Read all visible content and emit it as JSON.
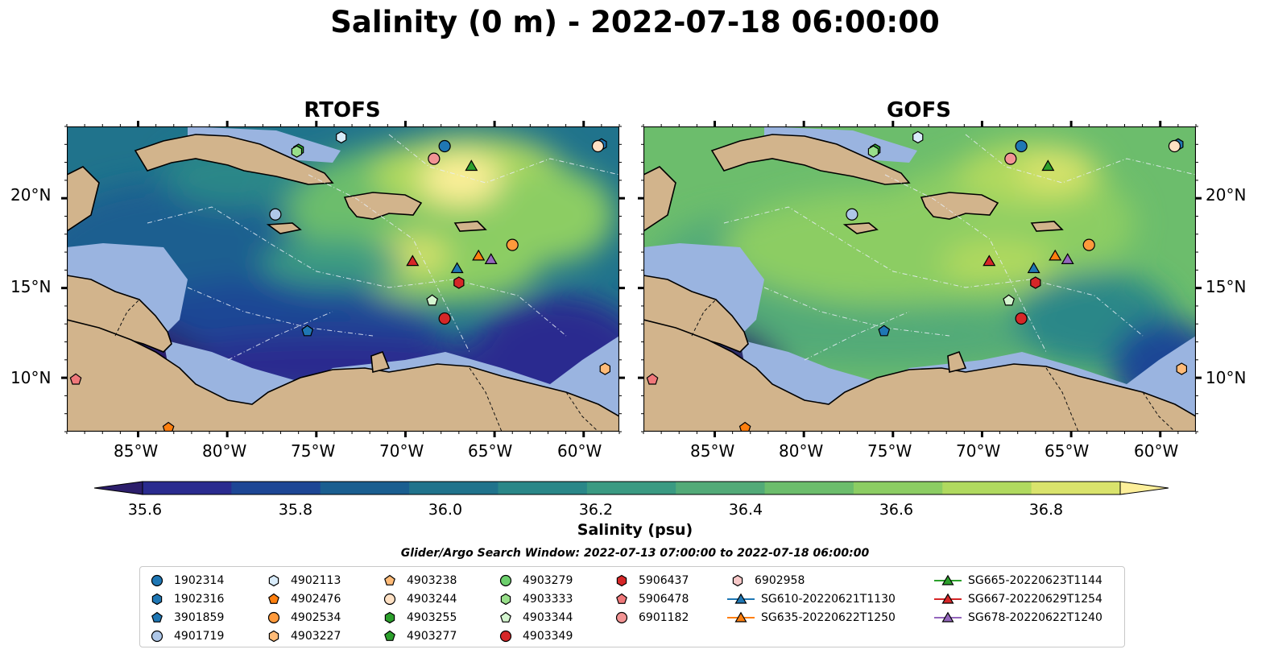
{
  "title": "Salinity (0 m) - 2022-07-18 06:00:00",
  "panels": [
    {
      "id": "rtofs",
      "title": "RTOFS"
    },
    {
      "id": "gofs",
      "title": "GOFS"
    }
  ],
  "axes": {
    "lon_ticks": [
      "85°W",
      "80°W",
      "75°W",
      "70°W",
      "65°W",
      "60°W"
    ],
    "lat_ticks": [
      "20°N",
      "15°N",
      "10°N"
    ]
  },
  "colorbar": {
    "label": "Salinity (psu)",
    "ticks": [
      "35.6",
      "35.8",
      "36.0",
      "36.2",
      "36.4",
      "36.6",
      "36.8"
    ],
    "range": [
      35.5,
      36.9
    ],
    "colors": [
      "#2c1e6b",
      "#2a2b8f",
      "#1d4695",
      "#1a5e90",
      "#20738c",
      "#2a8788",
      "#3a9a82",
      "#52aa78",
      "#6cbd6c",
      "#8ccd63",
      "#b0d95f",
      "#d9e36c",
      "#fdef9a"
    ]
  },
  "search_window": "Glider/Argo Search Window: 2022-07-13 07:00:00 to 2022-07-18 06:00:00",
  "land_color": "#d2b48c",
  "shelf_color": "#9ab4e0",
  "legend": [
    {
      "label": "1902314",
      "marker": "circle",
      "color": "#1f77b4"
    },
    {
      "label": "1902316",
      "marker": "hexagon",
      "color": "#1f77b4"
    },
    {
      "label": "3901859",
      "marker": "pentagon",
      "color": "#1f77b4"
    },
    {
      "label": "4901719",
      "marker": "circle",
      "color": "#aec7e8"
    },
    {
      "label": "4902113",
      "marker": "hexagon",
      "color": "#d9ecfb"
    },
    {
      "label": "4902476",
      "marker": "pentagon",
      "color": "#ff7f0e"
    },
    {
      "label": "4902534",
      "marker": "circle",
      "color": "#ff9a3c"
    },
    {
      "label": "4903227",
      "marker": "hexagon",
      "color": "#ffbb78"
    },
    {
      "label": "4903238",
      "marker": "pentagon",
      "color": "#ffbb78"
    },
    {
      "label": "4903244",
      "marker": "circle",
      "color": "#ffe1c4"
    },
    {
      "label": "4903255",
      "marker": "hexagon",
      "color": "#2ca02c"
    },
    {
      "label": "4903277",
      "marker": "pentagon",
      "color": "#2ca02c"
    },
    {
      "label": "4903279",
      "marker": "circle",
      "color": "#6ccf6c"
    },
    {
      "label": "4903333",
      "marker": "hexagon",
      "color": "#98df8a"
    },
    {
      "label": "4903344",
      "marker": "pentagon",
      "color": "#d4f5cf"
    },
    {
      "label": "4903349",
      "marker": "circle",
      "color": "#d62728"
    },
    {
      "label": "5906437",
      "marker": "hexagon",
      "color": "#d62728"
    },
    {
      "label": "5906478",
      "marker": "pentagon",
      "color": "#f0787a"
    },
    {
      "label": "6901182",
      "marker": "circle",
      "color": "#f29494"
    },
    {
      "label": "6902958",
      "marker": "hexagon",
      "color": "#f7c8c8"
    },
    {
      "label": "SG610-20220621T1130",
      "marker": "triangle",
      "color": "#1f77b4"
    },
    {
      "label": "SG635-20220622T1250",
      "marker": "triangle",
      "color": "#ff7f0e"
    },
    {
      "label": "SG665-20220623T1144",
      "marker": "triangle",
      "color": "#2ca02c"
    },
    {
      "label": "SG667-20220629T1254",
      "marker": "triangle",
      "color": "#d62728"
    },
    {
      "label": "SG678-20220622T1240",
      "marker": "triangle",
      "color": "#9467bd"
    }
  ],
  "observations": [
    {
      "id": "1902314",
      "lon": -67.8,
      "lat": 22.9,
      "marker": "circle",
      "color": "#1f77b4"
    },
    {
      "id": "1902316",
      "lon": -59.0,
      "lat": 23.0,
      "marker": "hexagon",
      "color": "#1f77b4"
    },
    {
      "id": "3901859",
      "lon": -75.5,
      "lat": 12.6,
      "marker": "pentagon",
      "color": "#1f77b4"
    },
    {
      "id": "4901719",
      "lon": -77.3,
      "lat": 19.1,
      "marker": "circle",
      "color": "#aec7e8"
    },
    {
      "id": "4902113",
      "lon": -73.6,
      "lat": 23.4,
      "marker": "hexagon",
      "color": "#d9ecfb"
    },
    {
      "id": "4902476",
      "lon": -83.3,
      "lat": 7.2,
      "marker": "pentagon",
      "color": "#ff7f0e"
    },
    {
      "id": "4902534",
      "lon": -64.0,
      "lat": 17.4,
      "marker": "circle",
      "color": "#ff9a3c"
    },
    {
      "id": "4903227",
      "lon": -58.8,
      "lat": 10.5,
      "marker": "hexagon",
      "color": "#ffbb78"
    },
    {
      "id": "4903244",
      "lon": -59.2,
      "lat": 22.9,
      "marker": "circle",
      "color": "#ffe1c4"
    },
    {
      "id": "4903255",
      "lon": -76.0,
      "lat": 22.7,
      "marker": "hexagon",
      "color": "#2ca02c"
    },
    {
      "id": "4903333",
      "lon": -76.1,
      "lat": 22.6,
      "marker": "hexagon",
      "color": "#98df8a"
    },
    {
      "id": "4903344",
      "lon": -68.5,
      "lat": 14.3,
      "marker": "pentagon",
      "color": "#d4f5cf"
    },
    {
      "id": "4903349",
      "lon": -67.8,
      "lat": 13.3,
      "marker": "circle",
      "color": "#d62728"
    },
    {
      "id": "5906437",
      "lon": -67.0,
      "lat": 15.3,
      "marker": "hexagon",
      "color": "#d62728"
    },
    {
      "id": "5906478",
      "lon": -88.5,
      "lat": 9.9,
      "marker": "pentagon",
      "color": "#f0787a"
    },
    {
      "id": "6901182",
      "lon": -68.4,
      "lat": 22.2,
      "marker": "circle",
      "color": "#f29494"
    },
    {
      "id": "SG610-20220621T1130",
      "lon": -67.1,
      "lat": 16.1,
      "marker": "triangle",
      "color": "#1f77b4"
    },
    {
      "id": "SG635-20220622T1250",
      "lon": -65.9,
      "lat": 16.8,
      "marker": "triangle",
      "color": "#ff7f0e"
    },
    {
      "id": "SG665-20220623T1144",
      "lon": -66.3,
      "lat": 21.8,
      "marker": "triangle",
      "color": "#2ca02c"
    },
    {
      "id": "SG667-20220629T1254",
      "lon": -69.6,
      "lat": 16.5,
      "marker": "triangle",
      "color": "#d62728"
    },
    {
      "id": "SG678-20220622T1240",
      "lon": -65.2,
      "lat": 16.6,
      "marker": "triangle",
      "color": "#9467bd"
    }
  ]
}
